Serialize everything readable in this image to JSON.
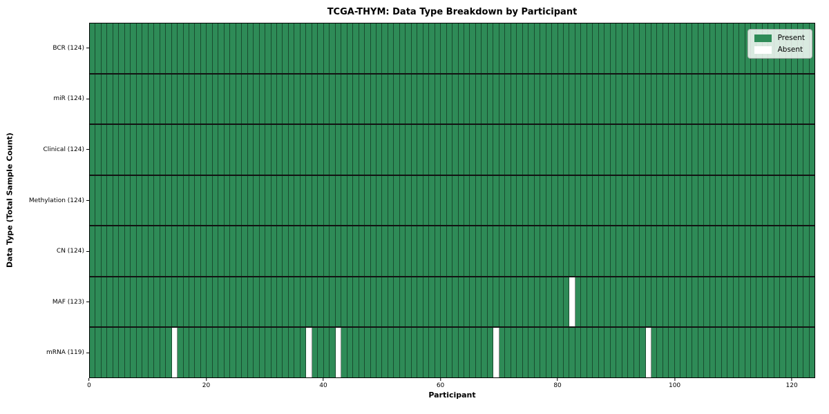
{
  "chart_data": {
    "type": "heatmap",
    "title": "TCGA-THYM: Data Type Breakdown by Participant",
    "xlabel": "Participant",
    "ylabel": "Data Type (Total Sample Count)",
    "x_range": [
      0,
      124
    ],
    "x_ticks": [
      0,
      20,
      40,
      60,
      80,
      100,
      120
    ],
    "n_participants": 124,
    "rows": [
      {
        "label": "BCR (124)",
        "data_type": "BCR",
        "total_samples": 124,
        "absent_participants": []
      },
      {
        "label": "miR (124)",
        "data_type": "miR",
        "total_samples": 124,
        "absent_participants": []
      },
      {
        "label": "Clinical (124)",
        "data_type": "Clinical",
        "total_samples": 124,
        "absent_participants": []
      },
      {
        "label": "Methylation (124)",
        "data_type": "Methylation",
        "total_samples": 124,
        "absent_participants": []
      },
      {
        "label": "CN (124)",
        "data_type": "CN",
        "total_samples": 124,
        "absent_participants": []
      },
      {
        "label": "MAF (123)",
        "data_type": "MAF",
        "total_samples": 123,
        "absent_participants": [
          82
        ]
      },
      {
        "label": "mRNA (119)",
        "data_type": "mRNA",
        "total_samples": 119,
        "absent_participants": [
          14,
          37,
          42,
          69,
          95
        ]
      }
    ],
    "legend_items": [
      {
        "label": "Present",
        "color": "#2e8b57"
      },
      {
        "label": "Absent",
        "color": "#ffffff"
      }
    ],
    "legend_position": "upper right",
    "grid": false,
    "colors": {
      "present": "#2e8b57",
      "absent": "#ffffff",
      "cell_edge": "rgba(0,0,0,0.45)",
      "row_edge": "#121212",
      "axes_edge": "#000000"
    }
  }
}
